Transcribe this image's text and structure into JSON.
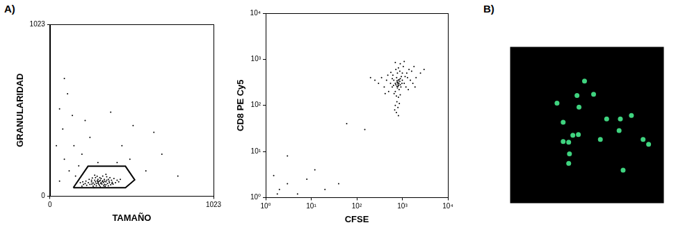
{
  "panel_labels": [
    "A)",
    "B)"
  ],
  "chart_data": [
    {
      "type": "scatter",
      "xlabel": "TAMAÑO",
      "ylabel": "GRANULARIDAD",
      "xlim": [
        0,
        1023
      ],
      "ylim": [
        0,
        1023
      ],
      "xticks": [
        0,
        1023
      ],
      "yticks": [
        0,
        1023
      ],
      "grid": false,
      "color": "#000000",
      "x": [
        250,
        260,
        270,
        280,
        290,
        300,
        310,
        320,
        330,
        340,
        350,
        360,
        370,
        380,
        390,
        300,
        285,
        320,
        340,
        260,
        240,
        230,
        220,
        275,
        315,
        345,
        365,
        395,
        410,
        420,
        400,
        375,
        355,
        330,
        295,
        265,
        245,
        225,
        210,
        205,
        300,
        310,
        325,
        335,
        290,
        305,
        315,
        285,
        270,
        355,
        365,
        385,
        430,
        440,
        200,
        190,
        350,
        302,
        318,
        328,
        278,
        262,
        342,
        372,
        388,
        296,
        336,
        312,
        350,
        280,
        120,
        90,
        150,
        80,
        60,
        110,
        200,
        250,
        180,
        300,
        450,
        600,
        700,
        520,
        90,
        140,
        60,
        420,
        800,
        380,
        650,
        40,
        220,
        160,
        500
      ],
      "values": [
        70,
        85,
        60,
        95,
        75,
        88,
        65,
        80,
        92,
        70,
        85,
        75,
        90,
        68,
        82,
        100,
        110,
        105,
        100,
        95,
        80,
        65,
        75,
        50,
        55,
        58,
        62,
        72,
        80,
        95,
        105,
        110,
        115,
        120,
        118,
        108,
        100,
        90,
        70,
        85,
        78,
        90,
        72,
        82,
        62,
        72,
        95,
        85,
        78,
        95,
        100,
        95,
        85,
        100,
        60,
        80,
        68,
        84,
        76,
        86,
        70,
        72,
        90,
        80,
        76,
        92,
        62,
        110,
        130,
        125,
        150,
        220,
        300,
        400,
        520,
        610,
        250,
        350,
        180,
        200,
        300,
        150,
        250,
        420,
        700,
        480,
        90,
        200,
        120,
        500,
        380,
        300,
        450,
        120,
        220
      ],
      "gate": {
        "x": [
          146,
          238,
          472,
          530,
          472,
          146
        ],
        "y": [
          50,
          178,
          178,
          97,
          50,
          50
        ]
      }
    },
    {
      "type": "scatter",
      "xlabel": "CFSE",
      "ylabel": "CD8 PE Cy5",
      "log": true,
      "xlim": [
        1,
        10000
      ],
      "ylim": [
        1,
        10000
      ],
      "xticks": [
        {
          "value": 1,
          "label": "10⁰"
        },
        {
          "value": 10,
          "label": "10¹"
        },
        {
          "value": 100,
          "label": "10²"
        },
        {
          "value": 1000,
          "label": "10³"
        },
        {
          "value": 10000,
          "label": "10⁴"
        }
      ],
      "yticks": [
        {
          "value": 1,
          "label": "10⁰"
        },
        {
          "value": 10,
          "label": "10¹"
        },
        {
          "value": 100,
          "label": "10²"
        },
        {
          "value": 1000,
          "label": "10³"
        },
        {
          "value": 10000,
          "label": "10⁴"
        }
      ],
      "grid": false,
      "color": "#000000",
      "x": [
        600,
        700,
        800,
        900,
        1000,
        750,
        850,
        650,
        950,
        700,
        800,
        900,
        1100,
        1200,
        550,
        500,
        620,
        780,
        880,
        1000,
        1300,
        1500,
        1700,
        450,
        400,
        350,
        720,
        820,
        1050,
        1400,
        300,
        250,
        2000,
        2500,
        1800,
        660,
        740,
        820,
        900,
        760,
        700,
        800,
        860,
        680,
        740,
        820,
        780,
        840,
        760,
        880,
        720,
        930,
        980,
        640,
        600,
        1150,
        1250,
        560,
        480,
        1600,
        900,
        700,
        1100,
        1350,
        420,
        800,
        830,
        770,
        810,
        760,
        850,
        3000,
        200,
        1900,
        2,
        3,
        1.5,
        5,
        12,
        40,
        150,
        3,
        20,
        1.8,
        60,
        8
      ],
      "values": [
        250,
        300,
        320,
        280,
        350,
        400,
        220,
        350,
        420,
        200,
        260,
        380,
        300,
        250,
        300,
        200,
        450,
        500,
        550,
        500,
        400,
        350,
        300,
        350,
        250,
        400,
        600,
        650,
        700,
        600,
        300,
        350,
        400,
        500,
        700,
        180,
        160,
        150,
        170,
        120,
        100,
        90,
        110,
        80,
        70,
        60,
        240,
        300,
        340,
        330,
        280,
        250,
        300,
        270,
        380,
        420,
        500,
        520,
        450,
        550,
        800,
        850,
        900,
        220,
        180,
        290,
        270,
        310,
        350,
        260,
        360,
        600,
        400,
        250,
        1.5,
        2,
        3,
        1.2,
        4,
        2,
        30,
        8,
        1.5,
        1.2,
        40,
        2.5
      ]
    },
    {
      "type": "scatter",
      "tick_labels": false,
      "grid": false,
      "color": "#3fd37f",
      "xlim": [
        0,
        100
      ],
      "ylim": [
        0,
        100
      ],
      "x": [
        43.5,
        54.3,
        44.8,
        62.8,
        78.9,
        34.5,
        44.4,
        58.7,
        70.9,
        86.5,
        34.5,
        38.1,
        40.8,
        38.6,
        38.1,
        73.5,
        48.4,
        30.5,
        90.1,
        71.7
      ],
      "values": [
        68.9,
        69.7,
        61.4,
        53.9,
        56.1,
        51.8,
        43.9,
        40.8,
        46.5,
        40.8,
        39.5,
        39.0,
        43.4,
        31.6,
        25.4,
        21.1,
        78.1,
        64.0,
        37.7,
        53.9
      ]
    }
  ]
}
